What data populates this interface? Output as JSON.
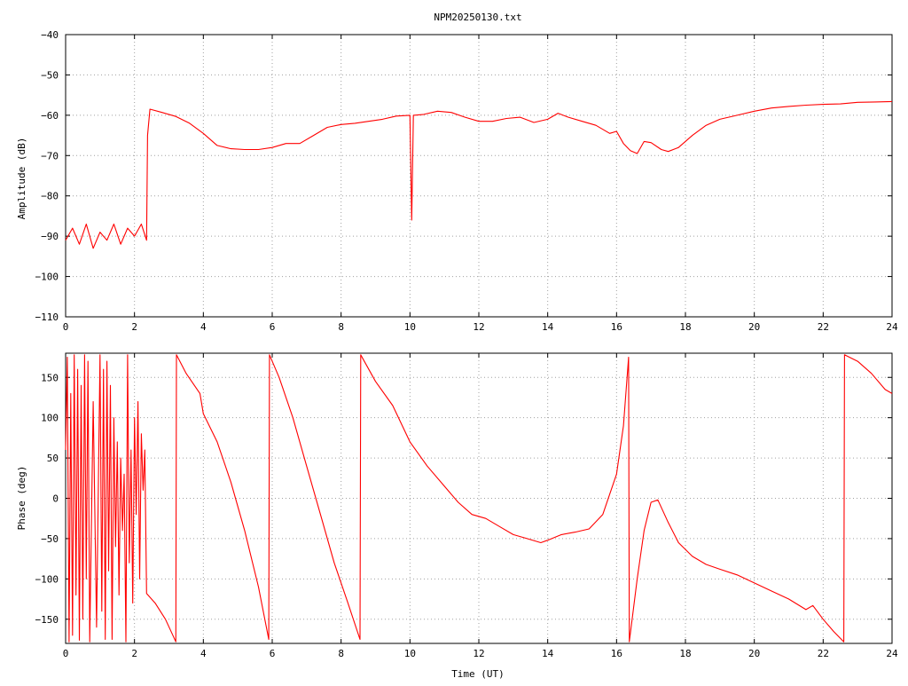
{
  "title": "NPM20250130.txt",
  "colors": {
    "trace": "#ff0000",
    "frame": "#000000",
    "grid": "#a0a0a0",
    "background": "#ffffff"
  },
  "chart_data": [
    {
      "type": "line",
      "title": "NPM20250130.txt",
      "xlabel": "",
      "ylabel": "Amplitude (dB)",
      "xlim": [
        0,
        24
      ],
      "ylim": [
        -110,
        -40
      ],
      "xticks": [
        0,
        2,
        4,
        6,
        8,
        10,
        12,
        14,
        16,
        18,
        20,
        22,
        24
      ],
      "yticks": [
        -40,
        -50,
        -60,
        -70,
        -80,
        -90,
        -100,
        -110
      ],
      "grid": true,
      "series": [
        {
          "values": [
            [
              0.0,
              -91
            ],
            [
              0.2,
              -88
            ],
            [
              0.4,
              -92
            ],
            [
              0.6,
              -87
            ],
            [
              0.8,
              -93
            ],
            [
              1.0,
              -89
            ],
            [
              1.2,
              -91
            ],
            [
              1.4,
              -87
            ],
            [
              1.6,
              -92
            ],
            [
              1.8,
              -88
            ],
            [
              2.0,
              -90
            ],
            [
              2.2,
              -87
            ],
            [
              2.35,
              -91
            ],
            [
              2.38,
              -65
            ],
            [
              2.45,
              -58.5
            ],
            [
              2.8,
              -59.3
            ],
            [
              3.2,
              -60.3
            ],
            [
              3.6,
              -62
            ],
            [
              4.0,
              -64.5
            ],
            [
              4.4,
              -67.5
            ],
            [
              4.8,
              -68.3
            ],
            [
              5.2,
              -68.5
            ],
            [
              5.6,
              -68.5
            ],
            [
              6.0,
              -68
            ],
            [
              6.4,
              -67
            ],
            [
              6.8,
              -67
            ],
            [
              7.2,
              -65
            ],
            [
              7.6,
              -63
            ],
            [
              8.0,
              -62.3
            ],
            [
              8.4,
              -62
            ],
            [
              8.8,
              -61.5
            ],
            [
              9.2,
              -61
            ],
            [
              9.6,
              -60.2
            ],
            [
              10.0,
              -60
            ],
            [
              10.05,
              -86
            ],
            [
              10.1,
              -60
            ],
            [
              10.4,
              -59.8
            ],
            [
              10.8,
              -59
            ],
            [
              11.2,
              -59.3
            ],
            [
              11.6,
              -60.5
            ],
            [
              12.0,
              -61.5
            ],
            [
              12.4,
              -61.5
            ],
            [
              12.8,
              -60.8
            ],
            [
              13.2,
              -60.5
            ],
            [
              13.6,
              -61.8
            ],
            [
              14.0,
              -61
            ],
            [
              14.3,
              -59.5
            ],
            [
              14.6,
              -60.5
            ],
            [
              15.0,
              -61.5
            ],
            [
              15.4,
              -62.5
            ],
            [
              15.8,
              -64.5
            ],
            [
              16.0,
              -64
            ],
            [
              16.2,
              -67
            ],
            [
              16.4,
              -68.8
            ],
            [
              16.6,
              -69.5
            ],
            [
              16.8,
              -66.5
            ],
            [
              17.0,
              -66.8
            ],
            [
              17.3,
              -68.5
            ],
            [
              17.5,
              -69
            ],
            [
              17.8,
              -68
            ],
            [
              18.2,
              -65
            ],
            [
              18.6,
              -62.5
            ],
            [
              19.0,
              -61
            ],
            [
              19.5,
              -60
            ],
            [
              20.0,
              -59
            ],
            [
              20.5,
              -58.2
            ],
            [
              21.0,
              -57.8
            ],
            [
              21.5,
              -57.5
            ],
            [
              22.0,
              -57.3
            ],
            [
              22.5,
              -57.2
            ],
            [
              23.0,
              -56.8
            ],
            [
              23.5,
              -56.7
            ],
            [
              24.0,
              -56.6
            ]
          ]
        }
      ]
    },
    {
      "type": "line",
      "title": "",
      "xlabel": "Time (UT)",
      "ylabel": "Phase (deg)",
      "xlim": [
        0,
        24
      ],
      "ylim": [
        -180,
        180
      ],
      "xticks": [
        0,
        2,
        4,
        6,
        8,
        10,
        12,
        14,
        16,
        18,
        20,
        22,
        24
      ],
      "yticks": [
        -150,
        -100,
        -50,
        0,
        50,
        100,
        150
      ],
      "grid": true,
      "series": [
        {
          "values": [
            [
              0.0,
              60
            ],
            [
              0.05,
              175
            ],
            [
              0.1,
              -178
            ],
            [
              0.15,
              130
            ],
            [
              0.2,
              -170
            ],
            [
              0.25,
              178
            ],
            [
              0.3,
              -120
            ],
            [
              0.35,
              160
            ],
            [
              0.4,
              -176
            ],
            [
              0.45,
              140
            ],
            [
              0.5,
              -150
            ],
            [
              0.55,
              178
            ],
            [
              0.6,
              -100
            ],
            [
              0.65,
              170
            ],
            [
              0.7,
              -178
            ],
            [
              0.8,
              120
            ],
            [
              0.9,
              -160
            ],
            [
              1.0,
              178
            ],
            [
              1.05,
              -140
            ],
            [
              1.1,
              160
            ],
            [
              1.15,
              -175
            ],
            [
              1.2,
              170
            ],
            [
              1.25,
              -90
            ],
            [
              1.3,
              140
            ],
            [
              1.35,
              -175
            ],
            [
              1.4,
              100
            ],
            [
              1.45,
              -60
            ],
            [
              1.5,
              70
            ],
            [
              1.55,
              -120
            ],
            [
              1.6,
              50
            ],
            [
              1.65,
              -40
            ],
            [
              1.7,
              30
            ],
            [
              1.75,
              -178
            ],
            [
              1.8,
              178
            ],
            [
              1.85,
              -80
            ],
            [
              1.9,
              60
            ],
            [
              1.95,
              -130
            ],
            [
              2.0,
              100
            ],
            [
              2.05,
              -20
            ],
            [
              2.1,
              120
            ],
            [
              2.15,
              -100
            ],
            [
              2.2,
              80
            ],
            [
              2.25,
              10
            ],
            [
              2.3,
              60
            ],
            [
              2.35,
              -118
            ],
            [
              2.6,
              -130
            ],
            [
              2.9,
              -150
            ],
            [
              3.2,
              -178
            ],
            [
              3.22,
              178
            ],
            [
              3.5,
              155
            ],
            [
              3.9,
              130
            ],
            [
              4.0,
              105
            ],
            [
              4.4,
              70
            ],
            [
              4.8,
              20
            ],
            [
              5.2,
              -40
            ],
            [
              5.6,
              -110
            ],
            [
              5.9,
              -175
            ],
            [
              5.92,
              178
            ],
            [
              6.2,
              150
            ],
            [
              6.6,
              100
            ],
            [
              7.0,
              40
            ],
            [
              7.4,
              -20
            ],
            [
              7.8,
              -80
            ],
            [
              8.2,
              -130
            ],
            [
              8.55,
              -175
            ],
            [
              8.57,
              178
            ],
            [
              9.0,
              145
            ],
            [
              9.5,
              115
            ],
            [
              10.0,
              70
            ],
            [
              10.5,
              40
            ],
            [
              11.0,
              15
            ],
            [
              11.4,
              -5
            ],
            [
              11.8,
              -20
            ],
            [
              12.2,
              -25
            ],
            [
              12.6,
              -35
            ],
            [
              13.0,
              -45
            ],
            [
              13.4,
              -50
            ],
            [
              13.8,
              -55
            ],
            [
              14.0,
              -52
            ],
            [
              14.4,
              -45
            ],
            [
              14.8,
              -42
            ],
            [
              15.2,
              -38
            ],
            [
              15.6,
              -20
            ],
            [
              16.0,
              30
            ],
            [
              16.2,
              90
            ],
            [
              16.35,
              175
            ],
            [
              16.37,
              -178
            ],
            [
              16.6,
              -100
            ],
            [
              16.8,
              -40
            ],
            [
              17.0,
              -5
            ],
            [
              17.2,
              -2
            ],
            [
              17.5,
              -30
            ],
            [
              17.8,
              -55
            ],
            [
              18.2,
              -72
            ],
            [
              18.6,
              -82
            ],
            [
              19.0,
              -88
            ],
            [
              19.5,
              -95
            ],
            [
              20.0,
              -105
            ],
            [
              20.5,
              -115
            ],
            [
              21.0,
              -125
            ],
            [
              21.5,
              -138
            ],
            [
              21.7,
              -133
            ],
            [
              22.0,
              -150
            ],
            [
              22.3,
              -165
            ],
            [
              22.6,
              -178
            ],
            [
              22.62,
              178
            ],
            [
              23.0,
              170
            ],
            [
              23.4,
              155
            ],
            [
              23.8,
              135
            ],
            [
              24.0,
              130
            ]
          ]
        }
      ]
    }
  ]
}
